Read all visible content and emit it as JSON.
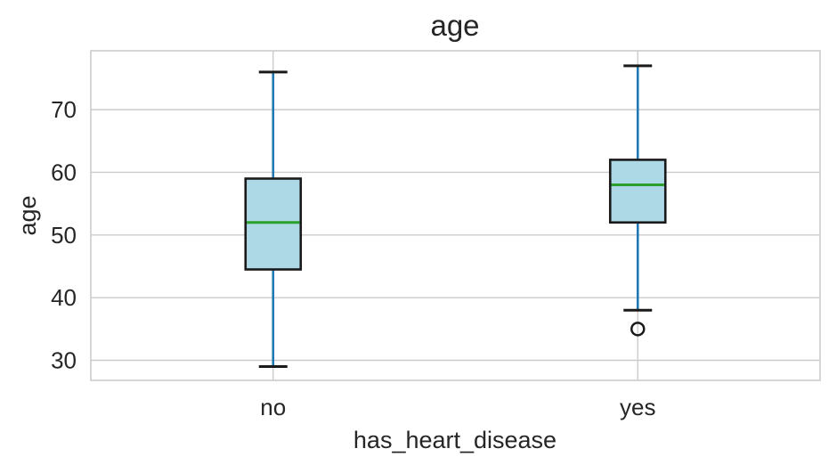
{
  "figure": {
    "background": "#ffffff"
  },
  "chart_data": {
    "type": "box",
    "title": "age",
    "xlabel": "has_heart_disease",
    "ylabel": "age",
    "categories": [
      "no",
      "yes"
    ],
    "series": [
      {
        "category": "no",
        "whisker_low": 29,
        "q1": 44.5,
        "median": 52,
        "q3": 59,
        "whisker_high": 76,
        "outliers": []
      },
      {
        "category": "yes",
        "whisker_low": 38,
        "q1": 52,
        "median": 58,
        "q3": 62,
        "whisker_high": 77,
        "outliers": [
          35
        ]
      }
    ],
    "yticks": [
      30,
      40,
      50,
      60,
      70
    ],
    "ylim": [
      26.8,
      79.4
    ],
    "grid": true,
    "legend_position": "none",
    "colors": {
      "box_fill": "#ADD8E6",
      "box_edge": "#1a1a1a",
      "median": "#2ca02c",
      "whisker": "#1f77b4",
      "cap": "#1a1a1a",
      "outlier_edge": "#1a1a1a",
      "grid": "#cccccc",
      "spine": "#cccccc",
      "text": "#262626",
      "plot_background": "#ffffff"
    }
  }
}
